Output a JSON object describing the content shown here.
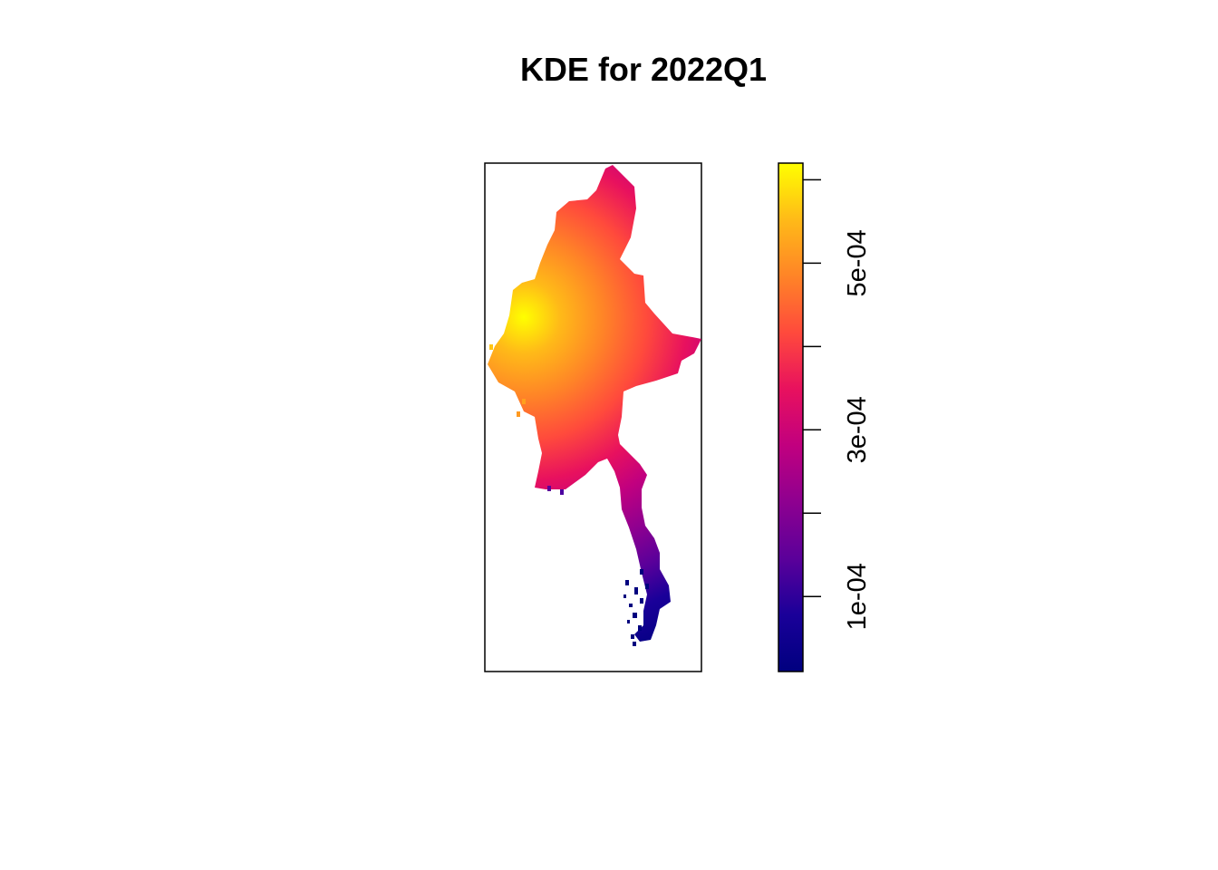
{
  "chart_data": {
    "type": "heatmap",
    "title": "KDE for 2022Q1",
    "legend_placement": "right",
    "colorbar": {
      "range": [
        1e-05,
        0.00062
      ],
      "ticks": [
        {
          "value": 0.0001,
          "label": "1e-04"
        },
        {
          "value": 0.0002,
          "label": ""
        },
        {
          "value": 0.0003,
          "label": "3e-04"
        },
        {
          "value": 0.0004,
          "label": ""
        },
        {
          "value": 0.0005,
          "label": "5e-04"
        },
        {
          "value": 0.0006,
          "label": ""
        }
      ],
      "palette": [
        "#00007F",
        "#1A0099",
        "#5B009A",
        "#8E0090",
        "#C1007F",
        "#E8115E",
        "#FF4A3C",
        "#FF8427",
        "#FFBA18",
        "#FFFF00"
      ]
    },
    "peak_value": 0.00062,
    "low_value": 1e-05
  }
}
